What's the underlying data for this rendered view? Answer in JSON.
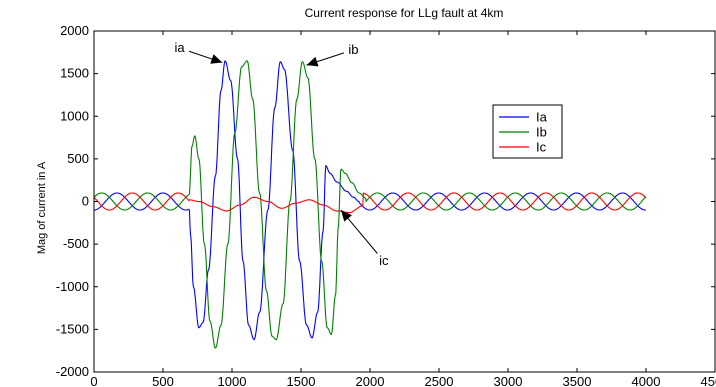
{
  "chart_data": {
    "type": "line",
    "title": "Current response for LLg fault at 4km",
    "xlabel": "",
    "ylabel": "Mag of current in A",
    "xlim": [
      0,
      4500
    ],
    "ylim": [
      -2000,
      2000
    ],
    "xticks": [
      0,
      500,
      1000,
      1500,
      2000,
      2500,
      3000,
      3500,
      4000,
      4500
    ],
    "yticks": [
      -2000,
      -1500,
      -1000,
      -500,
      0,
      500,
      1000,
      1500,
      2000
    ],
    "grid": false,
    "legend_position": "center-right",
    "x_range": [
      0,
      4000
    ],
    "series": [
      {
        "name": "Ia",
        "color": "#0000ff",
        "prefault": {
          "amplitude": 100,
          "period": 333,
          "phase_deg": -90
        },
        "fault_keypoints": [
          [
            690,
            -80
          ],
          [
            700,
            -400
          ],
          [
            720,
            -1000
          ],
          [
            760,
            -1480
          ],
          [
            790,
            -1420
          ],
          [
            830,
            -800
          ],
          [
            880,
            300
          ],
          [
            920,
            1300
          ],
          [
            950,
            1650
          ],
          [
            990,
            1420
          ],
          [
            1040,
            500
          ],
          [
            1080,
            -700
          ],
          [
            1120,
            -1450
          ],
          [
            1160,
            -1620
          ],
          [
            1200,
            -1300
          ],
          [
            1260,
            -100
          ],
          [
            1310,
            1100
          ],
          [
            1350,
            1640
          ],
          [
            1380,
            1550
          ],
          [
            1440,
            600
          ],
          [
            1490,
            -700
          ],
          [
            1540,
            -1450
          ],
          [
            1580,
            -1600
          ],
          [
            1620,
            -1300
          ],
          [
            1660,
            -350
          ],
          [
            1680,
            420
          ],
          [
            1710,
            330
          ],
          [
            1760,
            230
          ],
          [
            1830,
            120
          ],
          [
            1880,
            50
          ],
          [
            1920,
            0
          ]
        ],
        "postfault": {
          "amplitude": 100,
          "period": 333,
          "phase_deg": -90
        }
      },
      {
        "name": "Ib",
        "color": "#008000",
        "prefault": {
          "amplitude": 100,
          "period": 333,
          "phase_deg": 30
        },
        "fault_keypoints": [
          [
            690,
            80
          ],
          [
            710,
            650
          ],
          [
            730,
            770
          ],
          [
            760,
            500
          ],
          [
            800,
            -500
          ],
          [
            840,
            -1400
          ],
          [
            880,
            -1720
          ],
          [
            920,
            -1450
          ],
          [
            970,
            -500
          ],
          [
            1020,
            800
          ],
          [
            1070,
            1580
          ],
          [
            1110,
            1650
          ],
          [
            1150,
            1200
          ],
          [
            1200,
            100
          ],
          [
            1250,
            -1050
          ],
          [
            1290,
            -1580
          ],
          [
            1320,
            -1620
          ],
          [
            1370,
            -1200
          ],
          [
            1420,
            0
          ],
          [
            1470,
            1200
          ],
          [
            1510,
            1640
          ],
          [
            1550,
            1450
          ],
          [
            1600,
            500
          ],
          [
            1650,
            -700
          ],
          [
            1690,
            -1480
          ],
          [
            1720,
            -1560
          ],
          [
            1750,
            -1100
          ],
          [
            1770,
            -300
          ],
          [
            1790,
            380
          ],
          [
            1820,
            330
          ],
          [
            1870,
            220
          ],
          [
            1920,
            100
          ],
          [
            1970,
            40
          ]
        ],
        "postfault": {
          "amplitude": 100,
          "period": 333,
          "phase_deg": 30
        }
      },
      {
        "name": "Ic",
        "color": "#ff0000",
        "prefault": {
          "amplitude": 100,
          "period": 333,
          "phase_deg": 150
        },
        "fault_keypoints": [
          [
            690,
            20
          ],
          [
            760,
            0
          ],
          [
            860,
            -60
          ],
          [
            960,
            -110
          ],
          [
            1060,
            -40
          ],
          [
            1160,
            50
          ],
          [
            1260,
            0
          ],
          [
            1360,
            -80
          ],
          [
            1460,
            -20
          ],
          [
            1560,
            20
          ],
          [
            1660,
            -40
          ],
          [
            1760,
            -110
          ],
          [
            1850,
            -130
          ],
          [
            1950,
            -50
          ]
        ],
        "postfault": {
          "amplitude": 100,
          "period": 333,
          "phase_deg": 150
        }
      }
    ],
    "annotations": [
      {
        "text": "ia",
        "point": [
          930,
          1630
        ],
        "label_at": [
          620,
          1800
        ]
      },
      {
        "text": "ib",
        "point": [
          1540,
          1600
        ],
        "label_at": [
          1880,
          1780
        ]
      },
      {
        "text": "ic",
        "point": [
          1790,
          -100
        ],
        "label_at": [
          2100,
          -700
        ]
      }
    ]
  }
}
